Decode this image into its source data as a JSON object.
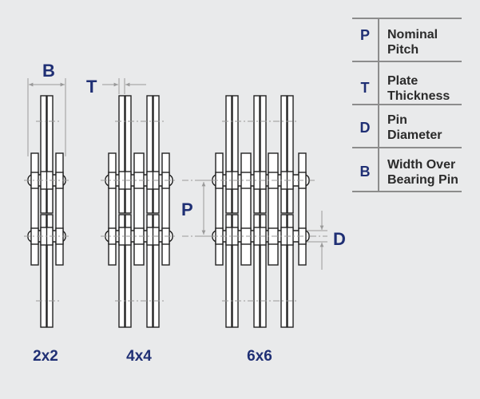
{
  "dimension_labels": {
    "B": "B",
    "T": "T",
    "P": "P",
    "D": "D"
  },
  "chain_labels": [
    "2x2",
    "4x4",
    "6x6"
  ],
  "legend": [
    {
      "symbol": "P",
      "line1": "Nominal",
      "line2": "Pitch"
    },
    {
      "symbol": "T",
      "line1": "Plate",
      "line2": "Thickness"
    },
    {
      "symbol": "D",
      "line1": "Pin",
      "line2": "Diameter"
    },
    {
      "symbol": "B",
      "line1": "Width Over",
      "line2": "Bearing Pin"
    }
  ],
  "colors": {
    "background": "#e9eaeb",
    "label_blue": "#1f2f74",
    "plate_fill": "#ffffff",
    "outline": "#222222",
    "dimension_line": "#9a9a9a",
    "table_rule": "#8c8c8c"
  }
}
